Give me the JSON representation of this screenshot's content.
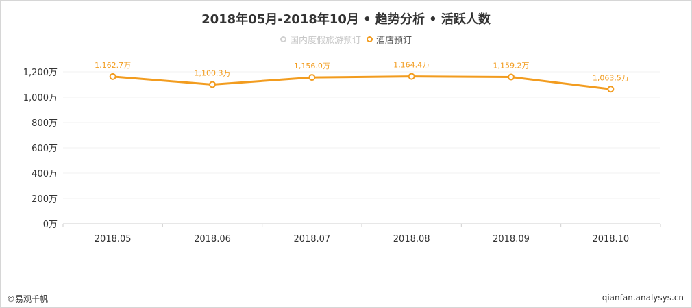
{
  "title": "2018年05月-2018年10月 • 趋势分析 • 活跃人数",
  "legend": [
    {
      "label": "国内度假旅游预订",
      "active": false,
      "color": "#d0d0d0"
    },
    {
      "label": "酒店预订",
      "active": true,
      "color": "#f29c1f"
    }
  ],
  "footer": {
    "brand": "©易观千帆",
    "site": "qianfan.analysys.cn"
  },
  "chart_data": {
    "type": "line",
    "categories": [
      "2018.05",
      "2018.06",
      "2018.07",
      "2018.08",
      "2018.09",
      "2018.10"
    ],
    "series": [
      {
        "name": "酒店预订",
        "values": [
          1162.7,
          1100.3,
          1156.0,
          1164.4,
          1159.2,
          1063.5
        ],
        "labels": [
          "1,162.7万",
          "1,100.3万",
          "1,156.0万",
          "1,164.4万",
          "1,159.2万",
          "1,063.5万"
        ],
        "color": "#f29c1f"
      }
    ],
    "ylim": [
      0,
      1200
    ],
    "yticks": [
      0,
      200,
      400,
      600,
      800,
      1000,
      1200
    ],
    "ytick_labels": [
      "0万",
      "200万",
      "400万",
      "600万",
      "800万",
      "1,000万",
      "1,200万"
    ],
    "grid": true,
    "legend_position": "top-center"
  }
}
